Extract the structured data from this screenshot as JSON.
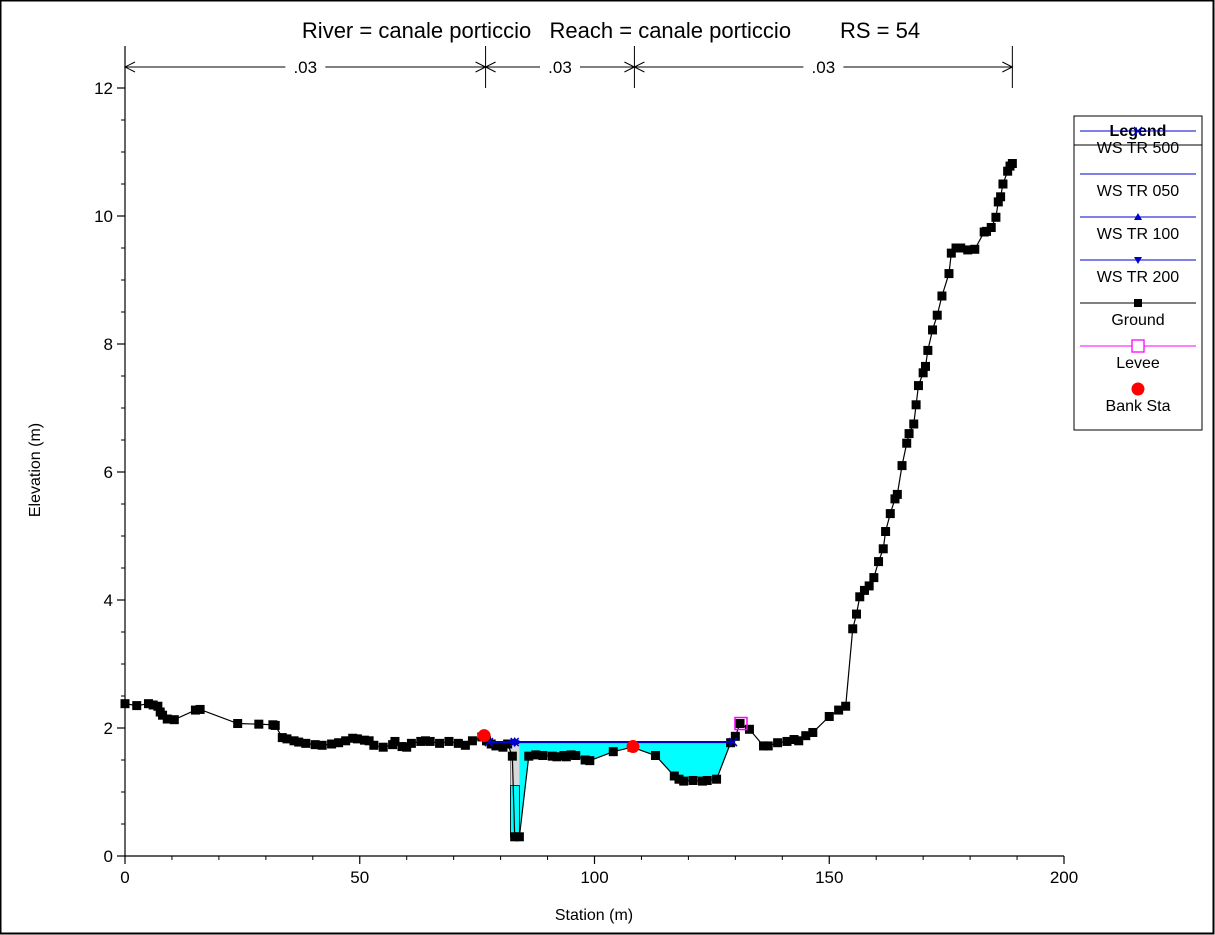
{
  "chart_data": {
    "type": "line",
    "title": "River = canale porticcio   Reach = canale porticcio        RS = 54",
    "xlabel": "Station (m)",
    "ylabel": "Elevation (m)",
    "xlim": [
      0,
      200
    ],
    "ylim": [
      0,
      12
    ],
    "xticks": [
      0,
      50,
      100,
      150,
      200
    ],
    "yticks": [
      0,
      2,
      4,
      6,
      8,
      10,
      12
    ],
    "grid": false,
    "legend_placement": "right",
    "legend_title": "Legend",
    "legend": [
      {
        "name": "WS TR 500",
        "marker": "x",
        "color": "#0000cc"
      },
      {
        "name": "WS TR 050",
        "marker": "none",
        "color": "#0000cc"
      },
      {
        "name": "WS TR 100",
        "marker": "triangle-up",
        "color": "#0000cc"
      },
      {
        "name": "WS TR 200",
        "marker": "triangle-down",
        "color": "#0000cc"
      },
      {
        "name": "Ground",
        "marker": "square",
        "color": "#000000"
      },
      {
        "name": "Levee",
        "marker": "open-square",
        "color": "#ff00ff"
      },
      {
        "name": "Bank Sta",
        "marker": "circle",
        "color": "#ff0000"
      }
    ],
    "mannings_n": {
      "breaks": [
        0,
        76.8,
        108.5,
        189
      ],
      "values": [
        ".03",
        ".03",
        ".03"
      ]
    },
    "water_surface": {
      "elevation": 1.78,
      "x_start": 77.5,
      "x_end": 129.5,
      "fill_color": "#00ffff"
    },
    "culvert_slot": {
      "x_start": 82.1,
      "x_end": 84.0,
      "bottom": 0.3,
      "top": 1.55
    },
    "series": [
      {
        "name": "Ground",
        "color": "#000000",
        "x": [
          0,
          2.5,
          5,
          6,
          7,
          7.5,
          8,
          9,
          10.5,
          15,
          16,
          24,
          28.5,
          31.5,
          32,
          33.5,
          34.5,
          36,
          37,
          38.5,
          40.5,
          42,
          44,
          45.5,
          47,
          48.5,
          49.5,
          51,
          52,
          53,
          55,
          57,
          57.5,
          59,
          60,
          61,
          63,
          64,
          65,
          67,
          69,
          71,
          72.5,
          74,
          76,
          77,
          78,
          79,
          80.5,
          81.5,
          82.5,
          83,
          84,
          86,
          87.5,
          89,
          91,
          92,
          93.5,
          94,
          95,
          96,
          98,
          99,
          104,
          108,
          113,
          117,
          118,
          119,
          121,
          123,
          124,
          126,
          129,
          130,
          131,
          133,
          136,
          137,
          139,
          141,
          142.5,
          143.5,
          145,
          146.5,
          150,
          152,
          153.5,
          155,
          155.8,
          156.5,
          157.5,
          158.5,
          159.5,
          160.5,
          161.5,
          162,
          163,
          164,
          164.5,
          165.5,
          166.5,
          167,
          168,
          168.5,
          169,
          170,
          170.5,
          171,
          172,
          173,
          174,
          175.5,
          176,
          177,
          178,
          179.5,
          181,
          183,
          183.5,
          184.5,
          185.5,
          186,
          186.5,
          187,
          188,
          188.5,
          189
        ],
        "y": [
          2.38,
          2.35,
          2.38,
          2.36,
          2.34,
          2.25,
          2.2,
          2.14,
          2.13,
          2.28,
          2.29,
          2.07,
          2.06,
          2.05,
          2.04,
          1.85,
          1.83,
          1.8,
          1.78,
          1.76,
          1.74,
          1.73,
          1.75,
          1.77,
          1.8,
          1.84,
          1.83,
          1.81,
          1.8,
          1.73,
          1.7,
          1.74,
          1.79,
          1.71,
          1.7,
          1.76,
          1.79,
          1.8,
          1.79,
          1.76,
          1.79,
          1.76,
          1.73,
          1.8,
          1.86,
          1.8,
          1.75,
          1.72,
          1.7,
          1.75,
          1.56,
          0.3,
          0.3,
          1.56,
          1.58,
          1.57,
          1.56,
          1.55,
          1.57,
          1.55,
          1.58,
          1.57,
          1.5,
          1.49,
          1.63,
          1.7,
          1.57,
          1.25,
          1.2,
          1.17,
          1.18,
          1.17,
          1.18,
          1.2,
          1.77,
          1.87,
          2.07,
          1.98,
          1.72,
          1.72,
          1.77,
          1.79,
          1.82,
          1.8,
          1.88,
          1.93,
          2.18,
          2.28,
          2.34,
          3.55,
          3.78,
          4.05,
          4.15,
          4.22,
          4.35,
          4.6,
          4.8,
          5.07,
          5.35,
          5.58,
          5.65,
          6.1,
          6.45,
          6.6,
          6.75,
          7.05,
          7.35,
          7.55,
          7.65,
          7.9,
          8.22,
          8.45,
          8.75,
          9.1,
          9.42,
          9.5,
          9.5,
          9.47,
          9.48,
          9.75,
          9.76,
          9.82,
          9.98,
          10.22,
          10.3,
          10.5,
          10.7,
          10.78,
          10.82
        ]
      },
      {
        "name": "WS TR 500",
        "color": "#0000cc",
        "x": [
          77.5,
          129.5
        ],
        "y": [
          1.78,
          1.78
        ]
      },
      {
        "name": "Levee",
        "color": "#ff00ff",
        "x": [
          131.2
        ],
        "y": [
          2.07
        ]
      },
      {
        "name": "Bank Sta",
        "color": "#ff0000",
        "x": [
          76.5,
          108.2
        ],
        "y": [
          1.88,
          1.71
        ]
      }
    ]
  }
}
